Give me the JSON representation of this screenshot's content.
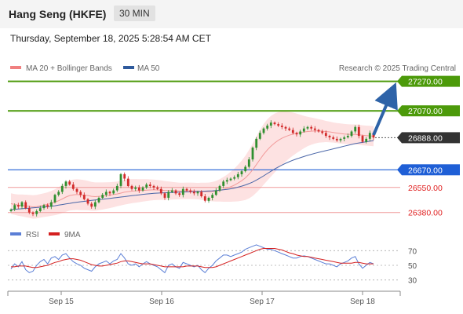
{
  "header": {
    "title": "Hang Seng (HKFE)",
    "timeframe": "30 MIN",
    "timestamp": "Thursday, September 18, 2025 5:28:54 AM CET"
  },
  "legend": {
    "items": [
      {
        "label": "MA 20 + Bollinger Bands",
        "color": "#f08080"
      },
      {
        "label": "MA 50",
        "color": "#2e5a9c"
      }
    ],
    "copyright": "Research © 2025 Trading Central"
  },
  "rsi_legend": {
    "items": [
      {
        "label": "RSI",
        "color": "#5b7fd6"
      },
      {
        "label": "9MA",
        "color": "#d42020"
      }
    ]
  },
  "colors": {
    "resistance": "#4c9a0a",
    "support_blue": "#1f5fd6",
    "support_red": "#e02020",
    "current_price_bg": "#333333",
    "arrow": "#2e63a8",
    "candle_up": "#2f8f2f",
    "candle_down": "#d22a2a",
    "band_fill": "#fde2e2"
  },
  "chart_data": [
    {
      "type": "candlestick",
      "title": "Hang Seng (HKFE)",
      "x_ticks": [
        "Sep 15",
        "Sep 16",
        "Sep 17",
        "Sep 18"
      ],
      "ylim": [
        26320,
        27300
      ],
      "current_price": 26888.0,
      "levels": [
        {
          "value": 27270.0,
          "label": "27270.00",
          "kind": "resistance"
        },
        {
          "value": 27070.0,
          "label": "27070.00",
          "kind": "resistance"
        },
        {
          "value": 26888.0,
          "label": "26888.00",
          "kind": "current"
        },
        {
          "value": 26670.0,
          "label": "26670.00",
          "kind": "pivot"
        },
        {
          "value": 26550.0,
          "label": "26550.00",
          "kind": "support"
        },
        {
          "value": 26380.0,
          "label": "26380.00",
          "kind": "support"
        }
      ],
      "close": [
        26400,
        26430,
        26420,
        26450,
        26410,
        26380,
        26370,
        26390,
        26410,
        26430,
        26420,
        26450,
        26500,
        26520,
        26560,
        26590,
        26570,
        26540,
        26520,
        26500,
        26470,
        26440,
        26420,
        26450,
        26480,
        26500,
        26520,
        26510,
        26530,
        26560,
        26640,
        26610,
        26560,
        26540,
        26550,
        26530,
        26550,
        26570,
        26560,
        26550,
        26540,
        26510,
        26480,
        26520,
        26530,
        26510,
        26500,
        26540,
        26530,
        26520,
        26510,
        26520,
        26490,
        26460,
        26480,
        26500,
        26530,
        26560,
        26590,
        26600,
        26610,
        26620,
        26640,
        26660,
        26690,
        26740,
        26820,
        26880,
        26920,
        26950,
        26970,
        26990,
        26980,
        26970,
        26960,
        26950,
        26940,
        26920,
        26910,
        26930,
        26950,
        26960,
        26950,
        26940,
        26930,
        26920,
        26900,
        26890,
        26880,
        26870,
        26880,
        26890,
        26900,
        26930,
        26960,
        26900,
        26860,
        26880,
        26920,
        26888
      ],
      "ma20": [
        26440,
        26435,
        26430,
        26428,
        26425,
        26422,
        26418,
        26420,
        26425,
        26430,
        26435,
        26442,
        26450,
        26460,
        26472,
        26485,
        26495,
        26500,
        26502,
        26500,
        26498,
        26495,
        26490,
        26488,
        26490,
        26492,
        26495,
        26498,
        26502,
        26506,
        26512,
        26518,
        26522,
        26525,
        26527,
        26528,
        26530,
        26532,
        26533,
        26534,
        26533,
        26532,
        26530,
        26529,
        26528,
        26527,
        26526,
        26526,
        26527,
        26527,
        26526,
        26525,
        26524,
        26522,
        26521,
        26522,
        26525,
        26530,
        26537,
        26545,
        26555,
        26566,
        26580,
        26596,
        26615,
        26640,
        26670,
        26705,
        26740,
        26775,
        26805,
        26830,
        26852,
        26870,
        26884,
        26896,
        26905,
        26912,
        26918,
        26922,
        26926,
        26930,
        26932,
        26934,
        26934,
        26932,
        26930,
        26927,
        26923,
        26919,
        26916,
        26913,
        26911,
        26910,
        26910,
        26908,
        26904,
        26902,
        26900,
        26898
      ],
      "ma50": [
        26400,
        26402,
        26404,
        26406,
        26408,
        26410,
        26412,
        26414,
        26416,
        26418,
        26420,
        26423,
        26426,
        26430,
        26434,
        26438,
        26442,
        26446,
        26450,
        26453,
        26456,
        26459,
        26462,
        26465,
        26468,
        26470,
        26473,
        26476,
        26479,
        26482,
        26485,
        26488,
        26491,
        26494,
        26497,
        26500,
        26503,
        26506,
        26508,
        26510,
        26512,
        26513,
        26514,
        26515,
        26516,
        26517,
        26518,
        26519,
        26520,
        26521,
        26522,
        26523,
        26524,
        26525,
        26526,
        26527,
        26529,
        26531,
        26534,
        26537,
        26541,
        26546,
        26552,
        26559,
        26567,
        26576,
        26587,
        26600,
        26614,
        26629,
        26645,
        26660,
        26675,
        26689,
        26702,
        26714,
        26725,
        26735,
        26744,
        26752,
        26760,
        26768,
        26775,
        26782,
        26788,
        26794,
        26800,
        26806,
        26812,
        26818,
        26824,
        26830,
        26836,
        26842,
        26848,
        26852,
        26856,
        26860,
        26864,
        26868
      ],
      "band_half_width": [
        70,
        70,
        72,
        74,
        76,
        78,
        80,
        80,
        80,
        80,
        82,
        84,
        88,
        92,
        96,
        100,
        102,
        104,
        104,
        104,
        102,
        100,
        98,
        96,
        94,
        92,
        90,
        88,
        86,
        84,
        84,
        84,
        84,
        82,
        80,
        78,
        76,
        74,
        72,
        70,
        68,
        66,
        64,
        62,
        60,
        58,
        56,
        56,
        56,
        56,
        56,
        56,
        58,
        60,
        62,
        66,
        70,
        76,
        84,
        92,
        102,
        112,
        124,
        136,
        150,
        164,
        178,
        190,
        200,
        206,
        208,
        206,
        200,
        192,
        182,
        170,
        158,
        146,
        134,
        122,
        110,
        100,
        92,
        86,
        80,
        76,
        72,
        70,
        68,
        68,
        68,
        68,
        68,
        68,
        68,
        68,
        68,
        68,
        68,
        68
      ]
    },
    {
      "type": "line",
      "title": "RSI",
      "yticks": [
        70,
        50,
        30
      ],
      "ylim": [
        20,
        80
      ],
      "series": [
        {
          "name": "RSI",
          "values": [
            45,
            52,
            48,
            55,
            44,
            40,
            42,
            50,
            55,
            58,
            52,
            60,
            62,
            58,
            64,
            66,
            60,
            55,
            52,
            50,
            46,
            44,
            42,
            48,
            52,
            54,
            56,
            52,
            56,
            58,
            66,
            60,
            52,
            50,
            52,
            48,
            52,
            55,
            52,
            50,
            48,
            44,
            40,
            50,
            52,
            48,
            46,
            54,
            52,
            50,
            48,
            50,
            44,
            40,
            46,
            50,
            56,
            60,
            64,
            64,
            62,
            64,
            66,
            68,
            72,
            74,
            76,
            78,
            76,
            74,
            72,
            72,
            70,
            68,
            66,
            64,
            62,
            60,
            60,
            62,
            63,
            62,
            60,
            58,
            56,
            54,
            52,
            52,
            50,
            48,
            52,
            54,
            56,
            60,
            62,
            52,
            46,
            50,
            54,
            52
          ]
        },
        {
          "name": "9MA",
          "values": [
            48,
            48,
            49,
            49,
            49,
            48,
            47,
            47,
            48,
            49,
            50,
            52,
            54,
            55,
            57,
            58,
            59,
            59,
            58,
            57,
            55,
            53,
            51,
            50,
            49,
            49,
            50,
            51,
            52,
            53,
            55,
            56,
            56,
            55,
            54,
            53,
            52,
            52,
            52,
            51,
            50,
            49,
            48,
            48,
            48,
            48,
            48,
            48,
            49,
            49,
            49,
            49,
            48,
            47,
            47,
            47,
            48,
            50,
            52,
            54,
            56,
            58,
            60,
            62,
            64,
            66,
            68,
            70,
            72,
            73,
            73,
            73,
            73,
            72,
            71,
            69,
            67,
            66,
            64,
            63,
            62,
            62,
            61,
            60,
            59,
            58,
            57,
            56,
            55,
            54,
            53,
            53,
            53,
            53,
            54,
            54,
            53,
            52,
            52,
            52
          ]
        }
      ]
    }
  ]
}
